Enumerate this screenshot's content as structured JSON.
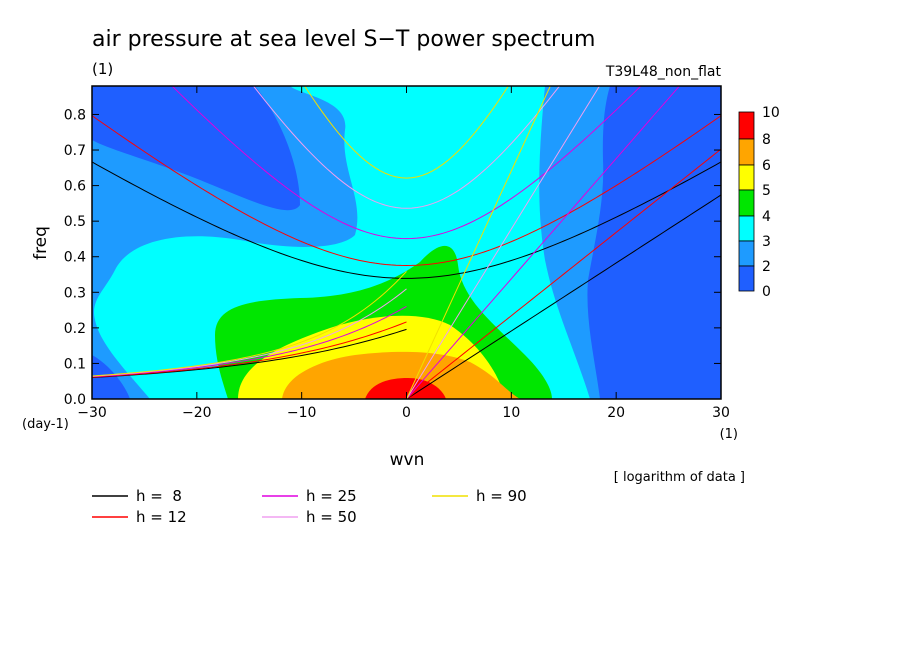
{
  "chart_data": {
    "type": "heatmap",
    "title": "air pressure at sea level S−T power spectrum",
    "title_unit": "(1)",
    "subtitle_right": "T39L48_non_flat",
    "xlabel": "wvn",
    "x_unit": "(1)",
    "ylabel": "freq",
    "y_unit": "(day-1)",
    "xlim": [
      -30,
      30
    ],
    "ylim": [
      0,
      0.88
    ],
    "x_ticks": [
      -30,
      -20,
      -10,
      0,
      10,
      20,
      30
    ],
    "x_tick_labels": [
      "−30",
      "−20",
      "−10",
      "0",
      "10",
      "20",
      "30"
    ],
    "y_ticks": [
      0.0,
      0.1,
      0.2,
      0.3,
      0.4,
      0.5,
      0.6,
      0.7,
      0.8
    ],
    "y_tick_labels": [
      "0.0",
      "0.1",
      "0.2",
      "0.3",
      "0.4",
      "0.5",
      "0.6",
      "0.7",
      "0.8"
    ],
    "note": "[ logarithm of data ]",
    "colorbar": {
      "levels": [
        0,
        2,
        3,
        4,
        5,
        6,
        8,
        10
      ],
      "labels": [
        "0",
        "2",
        "3",
        "4",
        "5",
        "6",
        "8",
        "10"
      ],
      "colors": [
        "#1f5fff",
        "#1e9bff",
        "#00ffff",
        "#00e600",
        "#ffff00",
        "#ffa500",
        "#ff0000"
      ]
    },
    "field_model": {
      "description": "approximate log power by region",
      "background": 2.4,
      "peak_center": [
        0,
        0
      ],
      "peak_value": 10,
      "east_band_x": [
        22,
        30
      ],
      "east_band_value": 1.5
    },
    "dispersion_curves": [
      {
        "label": "h =  8",
        "equivalent_depth": 8,
        "color": "#000000"
      },
      {
        "label": "h = 12",
        "equivalent_depth": 12,
        "color": "#ff0000"
      },
      {
        "label": "h = 25",
        "equivalent_depth": 25,
        "color": "#e000e0"
      },
      {
        "label": "h = 50",
        "equivalent_depth": 50,
        "color": "#f0a0f0"
      },
      {
        "label": "h = 90",
        "equivalent_depth": 90,
        "color": "#f0e000"
      }
    ]
  }
}
